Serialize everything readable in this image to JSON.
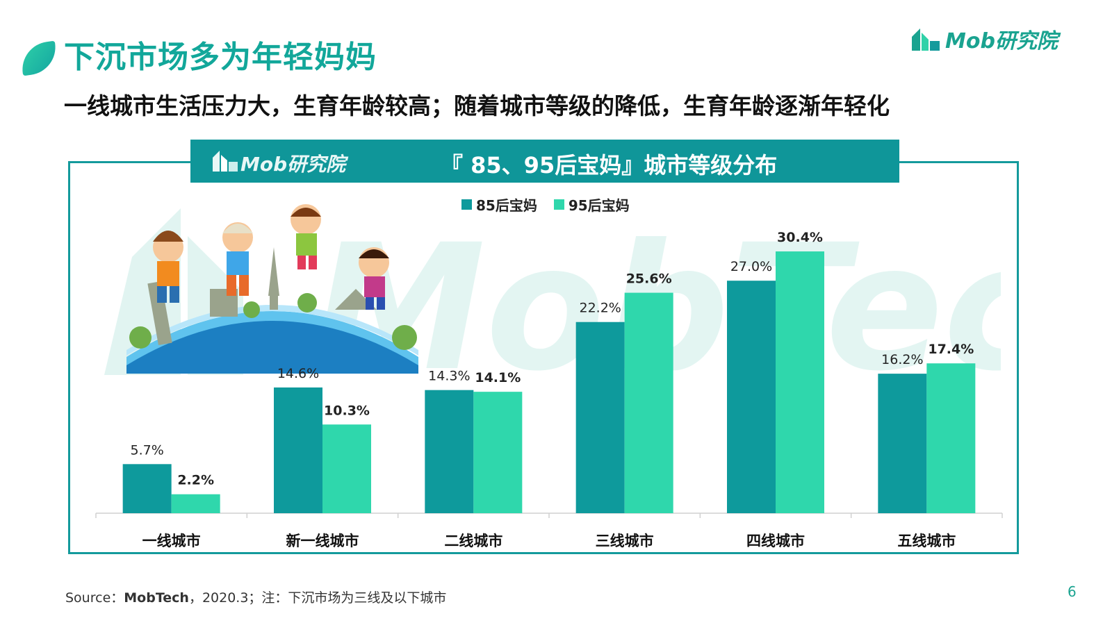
{
  "header": {
    "title": "下沉市场多为年轻妈妈",
    "subtitle": "一线城市生活压力大，生育年龄较高；随着城市等级的降低，生育年龄逐渐年轻化",
    "brand": "Mob研究院"
  },
  "panel": {
    "brand": "Mob研究院",
    "watermark": "MobTech"
  },
  "colors": {
    "series_85": "#0e9a9c",
    "series_95": "#2fd7ac",
    "accent": "#12a79a"
  },
  "chart_data": {
    "type": "bar",
    "title": "『 85、95后宝妈』城市等级分布",
    "categories": [
      "一线城市",
      "新一线城市",
      "二线城市",
      "三线城市",
      "四线城市",
      "五线城市"
    ],
    "series": [
      {
        "name": "85后宝妈",
        "values": [
          5.7,
          14.6,
          14.3,
          22.2,
          27.0,
          16.2
        ]
      },
      {
        "name": "95后宝妈",
        "values": [
          2.2,
          10.3,
          14.1,
          25.6,
          30.4,
          17.4
        ]
      }
    ],
    "value_labels": [
      [
        "5.7%",
        "14.6%",
        "14.3%",
        "22.2%",
        "27.0%",
        "16.2%"
      ],
      [
        "2.2%",
        "10.3%",
        "14.1%",
        "25.6%",
        "30.4%",
        "17.4%"
      ]
    ],
    "unit": "%",
    "ylim": [
      0,
      35
    ],
    "legend_position": "top-center",
    "grid": false
  },
  "footer": {
    "source_prefix": "Source：",
    "source_name": "MobTech",
    "source_suffix": "，2020.3；注：下沉市场为三线及以下城市",
    "page_number": "6"
  }
}
